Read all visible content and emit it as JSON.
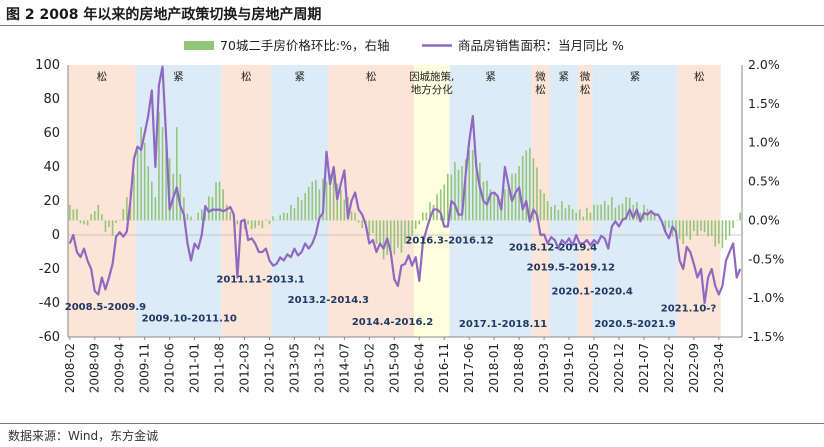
{
  "figure_title": "图 2   2008 年以来的房地产政策切换与房地产周期",
  "source_note": "数据来源：Wind，东方金诚",
  "colors": {
    "bar": "#92c47a",
    "line": "#8e68c3",
    "loose_band": "#fce4d6",
    "tight_band": "#ddebf7",
    "city_band": "#ffffe0",
    "axis_text": "#222222"
  },
  "chart_data": {
    "type": "bar+line",
    "legend": {
      "bar_label": "70城二手房价格环比:%，右轴",
      "line_label": "商品房销售面积：当月同比 %"
    },
    "left_axis": {
      "min": -60,
      "max": 100,
      "step": 20,
      "ticks": [
        "100",
        "80",
        "60",
        "40",
        "20",
        "0",
        "-20",
        "-40",
        "-60"
      ]
    },
    "right_axis": {
      "min": -1.5,
      "max": 2.0,
      "step": 0.5,
      "ticks": [
        "2.0%",
        "1.5%",
        "1.0%",
        "0.5%",
        "0.0%",
        "-0.5%",
        "-1.0%",
        "-1.5%"
      ]
    },
    "x_start": "2008-02",
    "x_end": "2023-04",
    "x_tick_labels": [
      "2008-02",
      "2008-09",
      "2009-04",
      "2009-11",
      "2010-06",
      "2011-01",
      "2011-08",
      "2012-03",
      "2012-10",
      "2013-05",
      "2013-12",
      "2014-07",
      "2015-02",
      "2015-09",
      "2016-04",
      "2016-11",
      "2017-06",
      "2018-01",
      "2018-08",
      "2019-03",
      "2019-10",
      "2020-05",
      "2020-12",
      "2021-07",
      "2022-02",
      "2022-09",
      "2023-04"
    ],
    "bands": [
      {
        "start": 0,
        "end": 19,
        "type": "loose",
        "label": "松"
      },
      {
        "start": 19,
        "end": 43,
        "type": "tight",
        "label": "紧"
      },
      {
        "start": 43,
        "end": 57,
        "type": "loose",
        "label": "松"
      },
      {
        "start": 57,
        "end": 73,
        "type": "tight",
        "label": "紧"
      },
      {
        "start": 73,
        "end": 97,
        "type": "loose",
        "label": "松"
      },
      {
        "start": 97,
        "end": 107,
        "type": "city",
        "label": "因城施策,|地方分化"
      },
      {
        "start": 107,
        "end": 130,
        "type": "tight",
        "label": "紧"
      },
      {
        "start": 130,
        "end": 135,
        "type": "loose",
        "label": "微|松"
      },
      {
        "start": 135,
        "end": 143,
        "type": "tight",
        "label": "紧"
      },
      {
        "start": 143,
        "end": 147,
        "type": "loose",
        "label": "微|松"
      },
      {
        "start": 147,
        "end": 171,
        "type": "tight",
        "label": "紧"
      },
      {
        "start": 171,
        "end": 183,
        "type": "loose",
        "label": "松"
      }
    ],
    "period_annotations": [
      {
        "text": "2008.5-2009.9",
        "at": 10.5,
        "y": -44
      },
      {
        "text": "2009.10-2011.10",
        "at": 34,
        "y": -51
      },
      {
        "text": "2011.11-2013.1",
        "at": 54,
        "y": -28
      },
      {
        "text": "2013.2-2014.3",
        "at": 73,
        "y": -40
      },
      {
        "text": "2014.4-2016.2",
        "at": 91,
        "y": -53
      },
      {
        "text": "2016.3-2016.12",
        "at": 107,
        "y": -5
      },
      {
        "text": "2017.1-2018.11",
        "at": 122,
        "y": -54
      },
      {
        "text": "2018.12-2019.4",
        "at": 136,
        "y": -9
      },
      {
        "text": "2019.5-2019.12",
        "at": 141,
        "y": -21
      },
      {
        "text": "2020.1-2020.4",
        "at": 147,
        "y": -35
      },
      {
        "text": "2020.5-2021.9",
        "at": 159,
        "y": -54
      },
      {
        "text": "2021.10-?",
        "at": 174,
        "y": -45
      }
    ],
    "line_anchors": [
      [
        0,
        -5
      ],
      [
        1,
        0
      ],
      [
        2,
        -10
      ],
      [
        3,
        -13
      ],
      [
        4,
        -8
      ],
      [
        6,
        -20
      ],
      [
        7,
        -33
      ],
      [
        8,
        -35
      ],
      [
        9,
        -25
      ],
      [
        10,
        -32
      ],
      [
        11,
        -25
      ],
      [
        12,
        -17
      ],
      [
        13,
        -1
      ],
      [
        15,
        -1
      ],
      [
        16,
        2
      ],
      [
        17,
        20
      ],
      [
        18,
        45
      ],
      [
        19,
        52
      ],
      [
        20,
        50
      ],
      [
        21,
        60
      ],
      [
        22,
        70
      ],
      [
        23,
        85
      ],
      [
        24,
        40
      ],
      [
        25,
        88
      ],
      [
        26,
        99
      ],
      [
        27,
        58
      ],
      [
        28,
        15
      ],
      [
        29,
        22
      ],
      [
        30,
        28
      ],
      [
        31,
        17
      ],
      [
        32,
        12
      ],
      [
        33,
        -5
      ],
      [
        34,
        -15
      ],
      [
        35,
        -5
      ],
      [
        36,
        -8
      ],
      [
        37,
        0
      ],
      [
        38,
        17
      ],
      [
        40,
        15
      ],
      [
        42,
        15
      ],
      [
        43,
        14
      ],
      [
        44,
        15
      ],
      [
        46,
        12
      ],
      [
        47,
        -25
      ],
      [
        48,
        8
      ],
      [
        49,
        9
      ],
      [
        50,
        -3
      ],
      [
        51,
        -2
      ],
      [
        52,
        -5
      ],
      [
        53,
        -10
      ],
      [
        54,
        -10
      ],
      [
        55,
        -8
      ],
      [
        56,
        -15
      ],
      [
        57,
        -18
      ],
      [
        58,
        -17
      ],
      [
        60,
        -15
      ],
      [
        62,
        -13
      ],
      [
        63,
        -8
      ],
      [
        64,
        -12
      ],
      [
        65,
        -10
      ],
      [
        66,
        -5
      ],
      [
        68,
        -5
      ],
      [
        70,
        10
      ],
      [
        71,
        13
      ],
      [
        72,
        49
      ],
      [
        73,
        30
      ],
      [
        74,
        40
      ],
      [
        75,
        21
      ],
      [
        76,
        30
      ],
      [
        77,
        38
      ],
      [
        78,
        10
      ],
      [
        79,
        20
      ],
      [
        80,
        25
      ],
      [
        81,
        15
      ],
      [
        82,
        12
      ],
      [
        83,
        6
      ],
      [
        84,
        -5
      ],
      [
        85,
        -3
      ],
      [
        86,
        -10
      ],
      [
        87,
        -5
      ],
      [
        88,
        -8
      ],
      [
        89,
        -2
      ],
      [
        90,
        -10
      ],
      [
        91,
        -26
      ],
      [
        92,
        -30
      ],
      [
        93,
        -18
      ],
      [
        94,
        -17
      ],
      [
        95,
        -12
      ],
      [
        96,
        -18
      ],
      [
        97,
        -13
      ],
      [
        98,
        -27
      ],
      [
        99,
        -5
      ],
      [
        100,
        3
      ],
      [
        101,
        10
      ],
      [
        102,
        15
      ],
      [
        103,
        15
      ],
      [
        104,
        13
      ],
      [
        105,
        5
      ],
      [
        106,
        5
      ],
      [
        107,
        20
      ],
      [
        108,
        18
      ],
      [
        109,
        12
      ],
      [
        110,
        12
      ],
      [
        111,
        35
      ],
      [
        112,
        55
      ],
      [
        113,
        70
      ],
      [
        114,
        40
      ],
      [
        115,
        28
      ],
      [
        116,
        20
      ],
      [
        117,
        18
      ],
      [
        119,
        25
      ],
      [
        121,
        15
      ],
      [
        122,
        40
      ],
      [
        124,
        20
      ],
      [
        125,
        25
      ],
      [
        126,
        28
      ],
      [
        127,
        15
      ],
      [
        128,
        20
      ],
      [
        129,
        8
      ],
      [
        130,
        15
      ],
      [
        131,
        12
      ],
      [
        132,
        0
      ],
      [
        134,
        -5
      ],
      [
        136,
        -3
      ],
      [
        137,
        -8
      ],
      [
        138,
        -3
      ],
      [
        139,
        -5
      ],
      [
        140,
        -2
      ],
      [
        141,
        -6
      ],
      [
        142,
        0
      ],
      [
        143,
        -5
      ],
      [
        144,
        -5
      ],
      [
        145,
        -3
      ],
      [
        146,
        -6
      ],
      [
        147,
        -3
      ],
      [
        148,
        -5
      ],
      [
        150,
        -2
      ],
      [
        151,
        -8
      ],
      [
        152,
        5
      ],
      [
        153,
        8
      ],
      [
        154,
        5
      ],
      [
        155,
        9
      ],
      [
        156,
        10
      ],
      [
        157,
        15
      ],
      [
        158,
        10
      ],
      [
        159,
        15
      ],
      [
        160,
        8
      ],
      [
        161,
        13
      ],
      [
        162,
        12
      ],
      [
        163,
        14
      ],
      [
        164,
        12
      ],
      [
        165,
        12
      ],
      [
        166,
        8
      ],
      [
        167,
        2
      ],
      [
        168,
        -2
      ],
      [
        169,
        5
      ],
      [
        170,
        2
      ],
      [
        171,
        -15
      ],
      [
        172,
        -20
      ],
      [
        173,
        -7
      ],
      [
        174,
        -10
      ],
      [
        176,
        -25
      ],
      [
        177,
        -20
      ],
      [
        178,
        -40
      ],
      [
        179,
        -25
      ],
      [
        180,
        -20
      ],
      [
        181,
        -30
      ],
      [
        182,
        -35
      ],
      [
        183,
        -30
      ],
      [
        184,
        -15
      ],
      [
        185,
        -10
      ],
      [
        186,
        -5
      ],
      [
        187,
        -25
      ],
      [
        188,
        -20
      ]
    ],
    "bar_anchors": [
      [
        0,
        0.2
      ],
      [
        2,
        0.15
      ],
      [
        4,
        -0.05
      ],
      [
        6,
        0.08
      ],
      [
        8,
        0.2
      ],
      [
        10,
        -0.15
      ],
      [
        12,
        -0.2
      ],
      [
        14,
        0.0
      ],
      [
        16,
        0.3
      ],
      [
        18,
        0.6
      ],
      [
        19,
        0.9
      ],
      [
        20,
        1.2
      ],
      [
        21,
        1.0
      ],
      [
        22,
        0.7
      ],
      [
        23,
        0.5
      ],
      [
        24,
        0.3
      ],
      [
        25,
        1.4
      ],
      [
        26,
        1.2
      ],
      [
        27,
        1.0
      ],
      [
        28,
        0.8
      ],
      [
        29,
        0.6
      ],
      [
        30,
        1.2
      ],
      [
        31,
        0.6
      ],
      [
        32,
        0.3
      ],
      [
        34,
        0.05
      ],
      [
        36,
        0.1
      ],
      [
        38,
        0.2
      ],
      [
        40,
        0.3
      ],
      [
        42,
        0.5
      ],
      [
        43,
        0.4
      ],
      [
        44,
        0.2
      ],
      [
        46,
        0.05
      ],
      [
        48,
        0.0
      ],
      [
        50,
        -0.05
      ],
      [
        52,
        -0.1
      ],
      [
        54,
        -0.1
      ],
      [
        56,
        -0.05
      ],
      [
        58,
        0.0
      ],
      [
        60,
        0.1
      ],
      [
        62,
        0.2
      ],
      [
        64,
        0.3
      ],
      [
        66,
        0.35
      ],
      [
        68,
        0.5
      ],
      [
        70,
        0.4
      ],
      [
        72,
        0.5
      ],
      [
        74,
        0.6
      ],
      [
        76,
        0.4
      ],
      [
        78,
        0.3
      ],
      [
        80,
        0.1
      ],
      [
        82,
        -0.1
      ],
      [
        84,
        -0.2
      ],
      [
        86,
        -0.3
      ],
      [
        88,
        -0.5
      ],
      [
        90,
        -0.4
      ],
      [
        92,
        -0.35
      ],
      [
        94,
        -0.3
      ],
      [
        96,
        -0.2
      ],
      [
        98,
        -0.05
      ],
      [
        100,
        0.1
      ],
      [
        102,
        0.2
      ],
      [
        104,
        0.4
      ],
      [
        106,
        0.6
      ],
      [
        108,
        0.75
      ],
      [
        110,
        0.7
      ],
      [
        112,
        0.9
      ],
      [
        114,
        0.8
      ],
      [
        116,
        0.5
      ],
      [
        118,
        0.4
      ],
      [
        120,
        0.3
      ],
      [
        122,
        0.4
      ],
      [
        124,
        0.6
      ],
      [
        126,
        0.7
      ],
      [
        128,
        0.9
      ],
      [
        130,
        0.8
      ],
      [
        132,
        0.4
      ],
      [
        134,
        0.25
      ],
      [
        136,
        0.2
      ],
      [
        138,
        0.25
      ],
      [
        140,
        0.2
      ],
      [
        142,
        0.1
      ],
      [
        144,
        0.05
      ],
      [
        146,
        0.1
      ],
      [
        148,
        0.2
      ],
      [
        150,
        0.25
      ],
      [
        152,
        0.3
      ],
      [
        154,
        0.2
      ],
      [
        156,
        0.3
      ],
      [
        158,
        0.2
      ],
      [
        160,
        0.1
      ],
      [
        162,
        0.15
      ],
      [
        164,
        0.1
      ],
      [
        166,
        0.0
      ],
      [
        168,
        -0.1
      ],
      [
        170,
        -0.2
      ],
      [
        172,
        -0.3
      ],
      [
        174,
        -0.25
      ],
      [
        176,
        -0.2
      ],
      [
        178,
        -0.15
      ],
      [
        180,
        -0.2
      ],
      [
        182,
        -0.3
      ],
      [
        184,
        -0.25
      ],
      [
        186,
        -0.1
      ],
      [
        187,
        0.0
      ],
      [
        188,
        0.1
      ]
    ]
  }
}
